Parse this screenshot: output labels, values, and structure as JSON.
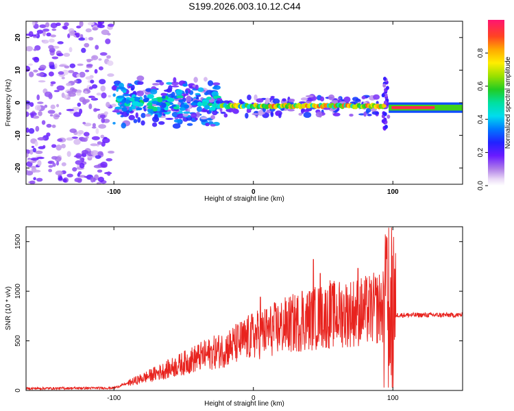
{
  "title": "S199.2026.003.10.12.C44",
  "chart_data": [
    {
      "type": "heatmap",
      "name": "spectrogram",
      "xlabel": "Height of straight line (km)",
      "ylabel": "Frequency (Hz)",
      "xlim": [
        -163,
        150
      ],
      "ylim": [
        -25,
        25
      ],
      "xticks": [
        -100,
        0,
        100
      ],
      "yticks": [
        -20,
        -10,
        0,
        10,
        20
      ],
      "colorbar": {
        "label": "Normalized spectral amplitude",
        "range": [
          0,
          1
        ],
        "ticks": [
          0.0,
          0.2,
          0.4,
          0.6,
          0.8
        ],
        "tick_labels": [
          "0.0",
          "0.2",
          "0.4",
          "0.6",
          "0.8"
        ]
      },
      "features": [
        {
          "x_range": [
            -163,
            -100
          ],
          "freq_range": [
            -25,
            25
          ],
          "amplitude": 0.15,
          "description_label": "noise"
        },
        {
          "x_range": [
            -100,
            -25
          ],
          "center_freq": 0,
          "amplitude": 0.35
        },
        {
          "x_range": [
            -25,
            95
          ],
          "center_freq": -1,
          "amplitude": 0.8
        },
        {
          "x_range": [
            97,
            150
          ],
          "center_freq": -1.5,
          "amplitude": 0.95
        }
      ]
    },
    {
      "type": "line",
      "name": "snr",
      "xlabel": "Height of straight line (km)",
      "ylabel": "SNR (10 * v/v)",
      "xlim": [
        -163,
        150
      ],
      "ylim": [
        0,
        1650
      ],
      "xticks": [
        -100,
        0,
        100
      ],
      "yticks": [
        0,
        500,
        1000,
        1500
      ],
      "color": "#e8231e",
      "envelope": {
        "x": [
          -163,
          -100,
          -80,
          -60,
          -40,
          -20,
          0,
          20,
          40,
          60,
          80,
          95,
          100,
          105,
          150
        ],
        "mean": [
          20,
          25,
          120,
          220,
          330,
          420,
          550,
          640,
          720,
          770,
          800,
          850,
          760,
          760,
          760
        ],
        "peaks": [
          {
            "x": 5,
            "y": 940
          },
          {
            "x": 35,
            "y": 1000
          },
          {
            "x": 43,
            "y": 1320
          },
          {
            "x": 48,
            "y": 1180
          },
          {
            "x": 55,
            "y": 1110
          },
          {
            "x": 75,
            "y": 1230
          },
          {
            "x": 97,
            "y": 1640
          },
          {
            "x": 99,
            "y": 1650
          }
        ]
      }
    }
  ]
}
